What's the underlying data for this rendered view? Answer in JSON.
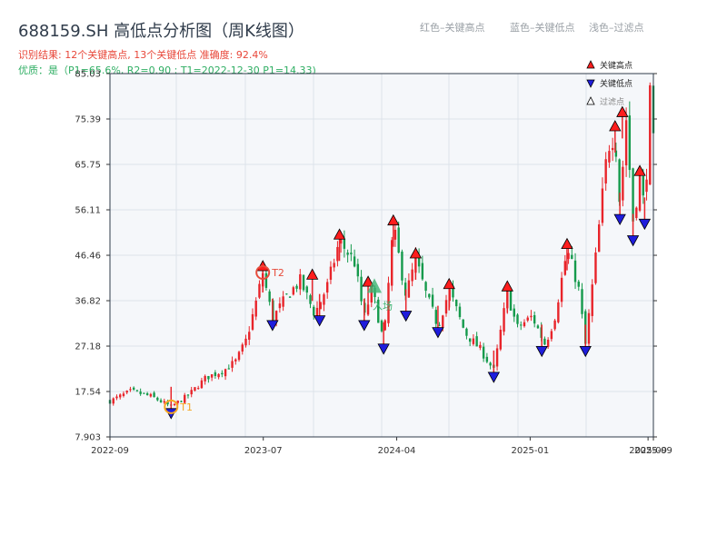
{
  "header": {
    "title": "688159.SH 高低点分析图（周K线图）",
    "summary": "识别结果: 12个关键高点, 13个关键低点  准确度: 92.4%",
    "quality": "优质：是（P1=65.6%, R2=0.90 ; T1=2022-12-30 P1=14.33)",
    "legend_high": "红色–关键高点",
    "legend_low": "蓝色–关键低点",
    "legend_filtered": "浅色–过滤点"
  },
  "colors": {
    "up": "#e8242a",
    "down": "#159a4c",
    "high_marker": "#ff1d1d",
    "low_marker": "#1f1ddc",
    "annotation_orange": "#f5a623",
    "annotation_red": "#e74c3c",
    "annotation_green": "#3cb371",
    "plot_bg": "#f5f7fa",
    "grid": "#dde3ea"
  },
  "chart_data": {
    "type": "candlestick",
    "interval": "weekly",
    "x_range": [
      "2022-08-19",
      "2025-09-12"
    ],
    "ylim": [
      7.903,
      85.03
    ],
    "ytick_labels": [
      "7.903",
      "17.54",
      "27.18",
      "36.82",
      "46.46",
      "56.11",
      "65.75",
      "75.39",
      "85.03"
    ],
    "xtick_labels": [
      "2022-09",
      "2023-07",
      "2024-04",
      "2025-01",
      "2025-09",
      "2025-09"
    ],
    "xtick_dates": [
      "2022-08-19",
      "2023-07-01",
      "2024-04-01",
      "2025-01-01",
      "2025-09-01",
      "2025-09-12"
    ],
    "anchors": [
      {
        "d": "2022-08-19",
        "v": 15.5
      },
      {
        "d": "2022-10-01",
        "v": 17.6
      },
      {
        "d": "2022-11-12",
        "v": 16.5
      },
      {
        "d": "2022-12-23",
        "v": 14.3
      },
      {
        "d": "2023-01-28",
        "v": 16.8
      },
      {
        "d": "2023-03-05",
        "v": 20.5
      },
      {
        "d": "2023-04-10",
        "v": 22.0
      },
      {
        "d": "2023-05-06",
        "v": 24.0
      },
      {
        "d": "2023-05-27",
        "v": 28.5
      },
      {
        "d": "2023-06-15",
        "v": 36.0
      },
      {
        "d": "2023-06-30",
        "v": 42.8
      },
      {
        "d": "2023-07-20",
        "v": 33.0
      },
      {
        "d": "2023-08-20",
        "v": 38.0
      },
      {
        "d": "2023-09-15",
        "v": 41.0
      },
      {
        "d": "2023-10-15",
        "v": 34.0
      },
      {
        "d": "2023-11-10",
        "v": 40.0
      },
      {
        "d": "2023-12-05",
        "v": 49.5
      },
      {
        "d": "2024-01-05",
        "v": 45.0
      },
      {
        "d": "2024-01-25",
        "v": 33.0
      },
      {
        "d": "2024-02-10",
        "v": 39.5
      },
      {
        "d": "2024-03-05",
        "v": 28.0
      },
      {
        "d": "2024-03-25",
        "v": 52.5
      },
      {
        "d": "2024-04-20",
        "v": 38.0
      },
      {
        "d": "2024-05-10",
        "v": 45.5
      },
      {
        "d": "2024-06-01",
        "v": 38.0
      },
      {
        "d": "2024-06-25",
        "v": 31.5
      },
      {
        "d": "2024-07-18",
        "v": 39.0
      },
      {
        "d": "2024-08-20",
        "v": 30.0
      },
      {
        "d": "2024-09-20",
        "v": 26.5
      },
      {
        "d": "2024-10-18",
        "v": 22.0
      },
      {
        "d": "2024-11-15",
        "v": 38.5
      },
      {
        "d": "2024-12-05",
        "v": 31.0
      },
      {
        "d": "2025-01-05",
        "v": 33.5
      },
      {
        "d": "2025-02-01",
        "v": 27.5
      },
      {
        "d": "2025-02-20",
        "v": 33.0
      },
      {
        "d": "2025-03-18",
        "v": 47.5
      },
      {
        "d": "2025-04-10",
        "v": 40.0
      },
      {
        "d": "2025-04-25",
        "v": 27.5
      },
      {
        "d": "2025-05-15",
        "v": 45.0
      },
      {
        "d": "2025-06-10",
        "v": 69.5
      },
      {
        "d": "2025-06-25",
        "v": 72.5
      },
      {
        "d": "2025-07-05",
        "v": 57.0
      },
      {
        "d": "2025-07-18",
        "v": 75.5
      },
      {
        "d": "2025-08-01",
        "v": 54.0
      },
      {
        "d": "2025-08-15",
        "v": 63.0
      },
      {
        "d": "2025-08-25",
        "v": 56.0
      },
      {
        "d": "2025-09-05",
        "v": 80.0
      },
      {
        "d": "2025-09-12",
        "v": 70.0
      }
    ],
    "key_highs": [
      {
        "d": "2023-06-30",
        "v": 42.8
      },
      {
        "d": "2023-10-10",
        "v": 41.0
      },
      {
        "d": "2023-12-05",
        "v": 49.5
      },
      {
        "d": "2024-02-02",
        "v": 39.5
      },
      {
        "d": "2024-03-25",
        "v": 52.5
      },
      {
        "d": "2024-05-10",
        "v": 45.5
      },
      {
        "d": "2024-07-18",
        "v": 39.0
      },
      {
        "d": "2024-11-15",
        "v": 38.5
      },
      {
        "d": "2025-03-18",
        "v": 47.5
      },
      {
        "d": "2025-06-25",
        "v": 72.5
      },
      {
        "d": "2025-07-10",
        "v": 75.5
      },
      {
        "d": "2025-08-15",
        "v": 63.0
      }
    ],
    "key_lows": [
      {
        "d": "2022-12-23",
        "v": 14.3
      },
      {
        "d": "2023-07-20",
        "v": 33.0
      },
      {
        "d": "2023-10-25",
        "v": 34.0
      },
      {
        "d": "2024-01-25",
        "v": 33.0
      },
      {
        "d": "2024-03-05",
        "v": 28.0
      },
      {
        "d": "2024-04-20",
        "v": 35.0
      },
      {
        "d": "2024-06-25",
        "v": 31.5
      },
      {
        "d": "2024-10-18",
        "v": 22.0
      },
      {
        "d": "2025-01-25",
        "v": 27.5
      },
      {
        "d": "2025-04-25",
        "v": 27.5
      },
      {
        "d": "2025-07-05",
        "v": 55.5
      },
      {
        "d": "2025-08-01",
        "v": 51.0
      },
      {
        "d": "2025-08-25",
        "v": 54.5
      }
    ],
    "annotations": [
      {
        "label": "T1",
        "d": "2022-12-23",
        "v": 14.3,
        "color": "annotation_orange"
      },
      {
        "label": "T2",
        "d": "2023-06-30",
        "v": 42.8,
        "color": "annotation_red"
      },
      {
        "label": "入场",
        "d": "2024-02-15",
        "v": 38.5,
        "color": "annotation_green"
      }
    ],
    "legend": [
      "关键高点",
      "关键低点",
      "过滤点"
    ]
  }
}
